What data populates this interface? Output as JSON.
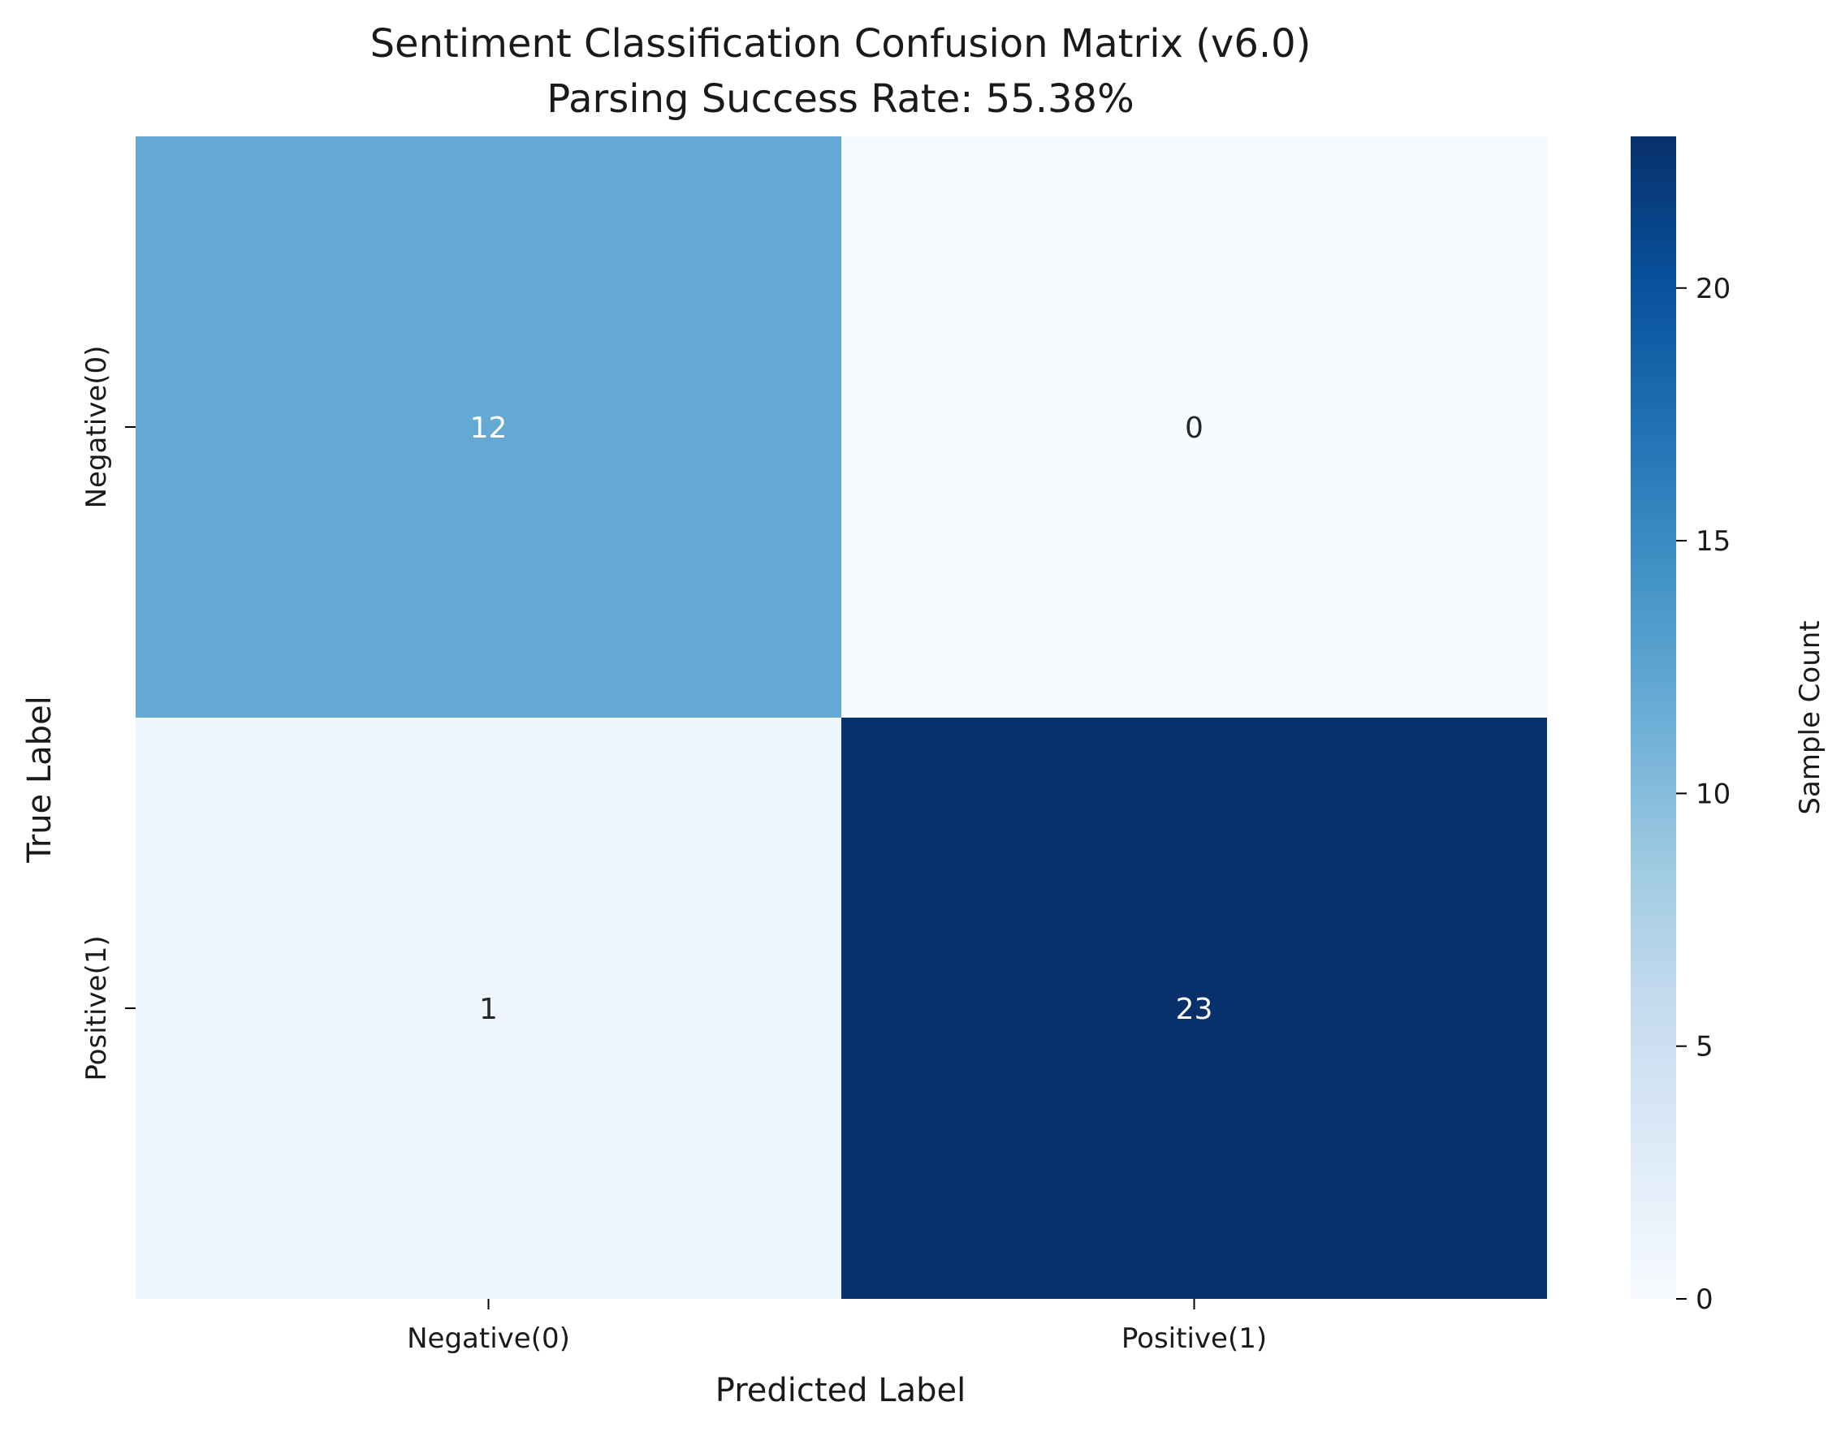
{
  "chart_data": {
    "type": "heatmap",
    "title": "Sentiment Classification Confusion Matrix (v6.0)",
    "subtitle": "Parsing Success Rate: 55.38%",
    "xlabel": "Predicted Label",
    "ylabel": "True Label",
    "x_categories": [
      "Negative(0)",
      "Positive(1)"
    ],
    "y_categories": [
      "Negative(0)",
      "Positive(1)"
    ],
    "matrix": [
      [
        12,
        0
      ],
      [
        1,
        23
      ]
    ],
    "colorscale": "Blues",
    "colorbar": {
      "label": "Sample Count",
      "range": [
        0,
        23
      ],
      "ticks": [
        0,
        5,
        10,
        15,
        20
      ]
    }
  }
}
